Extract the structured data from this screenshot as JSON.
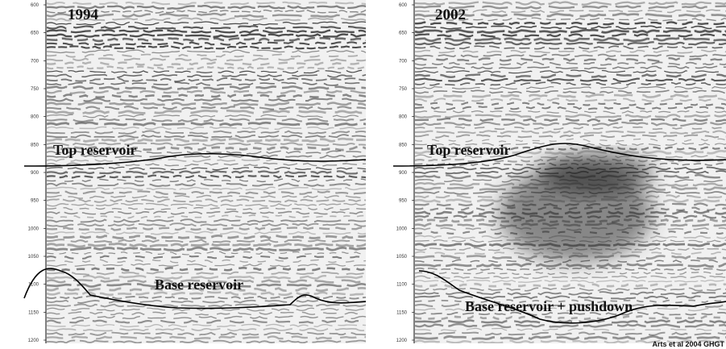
{
  "panels": [
    {
      "year": "1994",
      "top_label": "Top reservoir",
      "base_label": "Base reservoir"
    },
    {
      "year": "2002",
      "top_label": "Top reservoir",
      "base_label": "Base reservoir + pushdown"
    }
  ],
  "axis_ticks": [
    "600",
    "650",
    "700",
    "750",
    "800",
    "850",
    "900",
    "950",
    "1000",
    "1050",
    "1100",
    "1150",
    "1200"
  ],
  "credit": "Arts et al 2004 GHGT"
}
